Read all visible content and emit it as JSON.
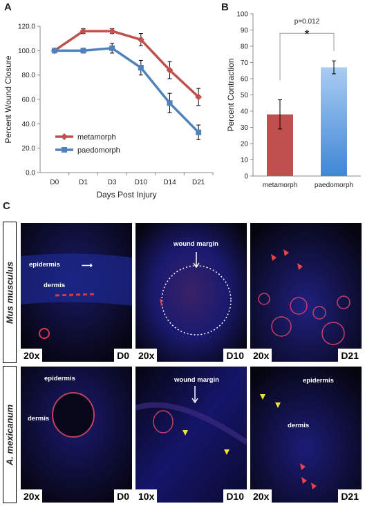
{
  "panels": {
    "a": "A",
    "b": "B",
    "c": "C"
  },
  "chart_data": [
    {
      "type": "line",
      "xlabel": "Days Post Injury",
      "ylabel": "Percent Wound Closure",
      "categories": [
        "D0",
        "D1",
        "D3",
        "D10",
        "D14",
        "D21"
      ],
      "yticks": [
        "0.0",
        "20.0",
        "40.0",
        "60.0",
        "80.0",
        "100.0",
        "120.0"
      ],
      "ylim": [
        0,
        120
      ],
      "legend": "lower-left",
      "series": [
        {
          "name": "metamorph",
          "color": "#c0504d",
          "marker": "diamond",
          "values": [
            100,
            116,
            116,
            109,
            84,
            62
          ],
          "errors": [
            0,
            2,
            2,
            5,
            7,
            7
          ]
        },
        {
          "name": "paedomorph",
          "color": "#4f81bd",
          "marker": "square",
          "values": [
            100,
            100,
            102,
            86,
            57,
            33
          ],
          "errors": [
            0,
            2,
            4,
            6,
            8,
            6
          ]
        }
      ]
    },
    {
      "type": "bar",
      "ylabel": "Percent Contraction",
      "categories": [
        "metamorph",
        "paedomorph"
      ],
      "values": [
        38,
        67
      ],
      "errors": [
        9,
        4
      ],
      "colors": [
        "#c0504d",
        "#6fa8e6"
      ],
      "ylim": [
        0,
        100
      ],
      "yticks": [
        "0",
        "10",
        "20",
        "30",
        "40",
        "50",
        "60",
        "70",
        "80",
        "90",
        "100"
      ],
      "annotation": {
        "pvalue": "p=0.012",
        "star": "*"
      }
    }
  ],
  "micrographs": {
    "row_labels": [
      "Mus musculus",
      "A. mexicanum"
    ],
    "row1": [
      {
        "mag": "20x",
        "day": "D0",
        "labels": [
          "epidermis",
          "dermis"
        ]
      },
      {
        "mag": "20x",
        "day": "D10",
        "labels": [
          "wound margin"
        ]
      },
      {
        "mag": "20x",
        "day": "D21",
        "labels": []
      }
    ],
    "row2": [
      {
        "mag": "20x",
        "day": "D0",
        "labels": [
          "epidermis",
          "dermis"
        ]
      },
      {
        "mag": "10x",
        "day": "D10",
        "labels": [
          "wound margin"
        ]
      },
      {
        "mag": "20x",
        "day": "D21",
        "labels": [
          "epidermis",
          "dermis"
        ]
      }
    ]
  }
}
